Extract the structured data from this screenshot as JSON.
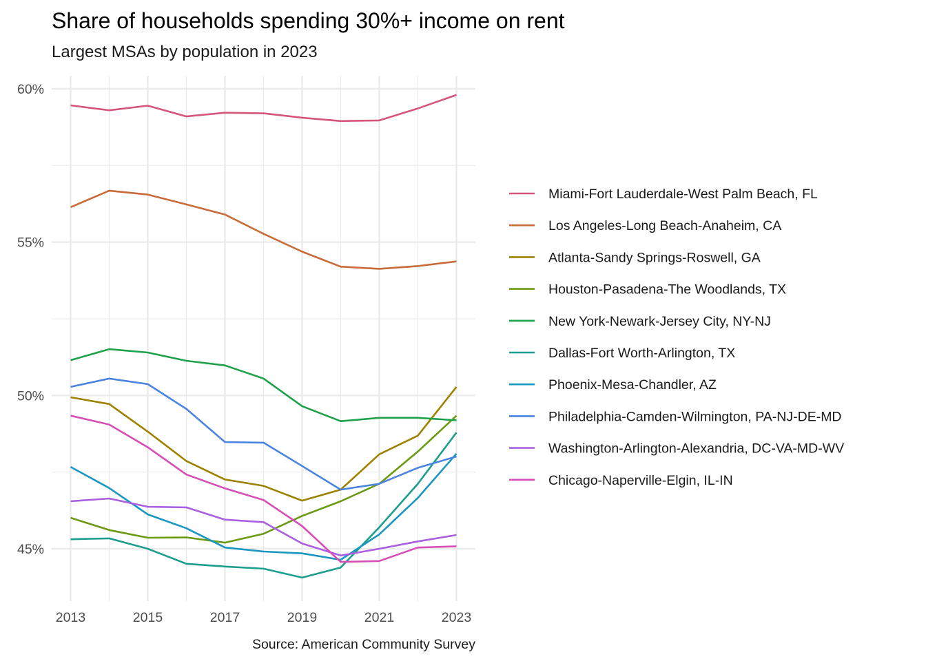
{
  "chart_data": {
    "type": "line",
    "title": "Share of households spending 30%+ income on rent",
    "subtitle": "Largest MSAs by population in 2023",
    "caption": "Source: American Community Survey",
    "xlabel": "",
    "ylabel": "",
    "x": [
      2013,
      2014,
      2015,
      2016,
      2017,
      2018,
      2019,
      2020,
      2021,
      2022,
      2023
    ],
    "xticks": [
      2013,
      2015,
      2017,
      2019,
      2021,
      2023
    ],
    "xtick_labels": [
      "2013",
      "2015",
      "2017",
      "2019",
      "2021",
      "2023"
    ],
    "xlim": [
      2012.55,
      2023.5
    ],
    "ylim": [
      43.4,
      60.4
    ],
    "yticks": [
      45,
      50,
      55,
      60
    ],
    "ytick_labels": [
      "45%",
      "50%",
      "55%",
      "60%"
    ],
    "yminor": [
      47.5,
      52.5,
      57.5
    ],
    "grid": true,
    "legend_position": "right",
    "series": [
      {
        "name": "Miami-Fort Lauderdale-West Palm Beach, FL",
        "color": "#D5567A",
        "values": [
          59.46,
          59.3,
          59.45,
          59.1,
          59.22,
          59.2,
          59.06,
          58.95,
          58.97,
          59.36,
          59.8
        ]
      },
      {
        "name": "Los Angeles-Long Beach-Anaheim, CA",
        "color": "#C96A39",
        "values": [
          56.14,
          56.68,
          56.55,
          56.23,
          55.9,
          55.27,
          54.69,
          54.2,
          54.13,
          54.22,
          54.37
        ]
      },
      {
        "name": "Atlanta-Sandy Springs-Roswell, GA",
        "color": "#9D8200",
        "values": [
          49.94,
          49.72,
          48.82,
          47.86,
          47.26,
          47.05,
          46.57,
          46.93,
          48.08,
          48.69,
          50.28
        ]
      },
      {
        "name": "Houston-Pasadena-The Woodlands, TX",
        "color": "#6A9A12",
        "values": [
          46.01,
          45.61,
          45.36,
          45.37,
          45.2,
          45.49,
          46.07,
          46.55,
          47.12,
          48.17,
          49.34
        ]
      },
      {
        "name": "New York-Newark-Jersey City, NY-NJ",
        "color": "#1FA14B",
        "values": [
          51.15,
          51.51,
          51.4,
          51.13,
          50.98,
          50.55,
          49.65,
          49.16,
          49.27,
          49.27,
          49.19
        ]
      },
      {
        "name": "Dallas-Fort Worth-Arlington, TX",
        "color": "#1B9E8D",
        "values": [
          45.31,
          45.34,
          45.0,
          44.51,
          44.42,
          44.35,
          44.06,
          44.39,
          45.7,
          47.12,
          48.79
        ]
      },
      {
        "name": "Phoenix-Mesa-Chandler, AZ",
        "color": "#1997C1",
        "values": [
          47.67,
          46.98,
          46.12,
          45.67,
          45.04,
          44.91,
          44.85,
          44.64,
          45.47,
          46.66,
          48.1
        ]
      },
      {
        "name": "Philadelphia-Camden-Wilmington, PA-NJ-DE-MD",
        "color": "#4B83E0",
        "values": [
          50.28,
          50.55,
          50.37,
          49.56,
          48.48,
          48.46,
          47.7,
          46.93,
          47.12,
          47.64,
          48.01
        ]
      },
      {
        "name": "Washington-Arlington-Alexandria, DC-VA-MD-WV",
        "color": "#A95FE0",
        "values": [
          46.55,
          46.64,
          46.37,
          46.35,
          45.95,
          45.87,
          45.17,
          44.78,
          45.0,
          45.24,
          45.45
        ]
      },
      {
        "name": "Chicago-Naperville-Elgin, IL-IN",
        "color": "#D64DB5",
        "values": [
          49.34,
          49.05,
          48.31,
          47.42,
          46.97,
          46.59,
          45.74,
          44.57,
          44.6,
          45.04,
          45.08
        ]
      }
    ]
  }
}
